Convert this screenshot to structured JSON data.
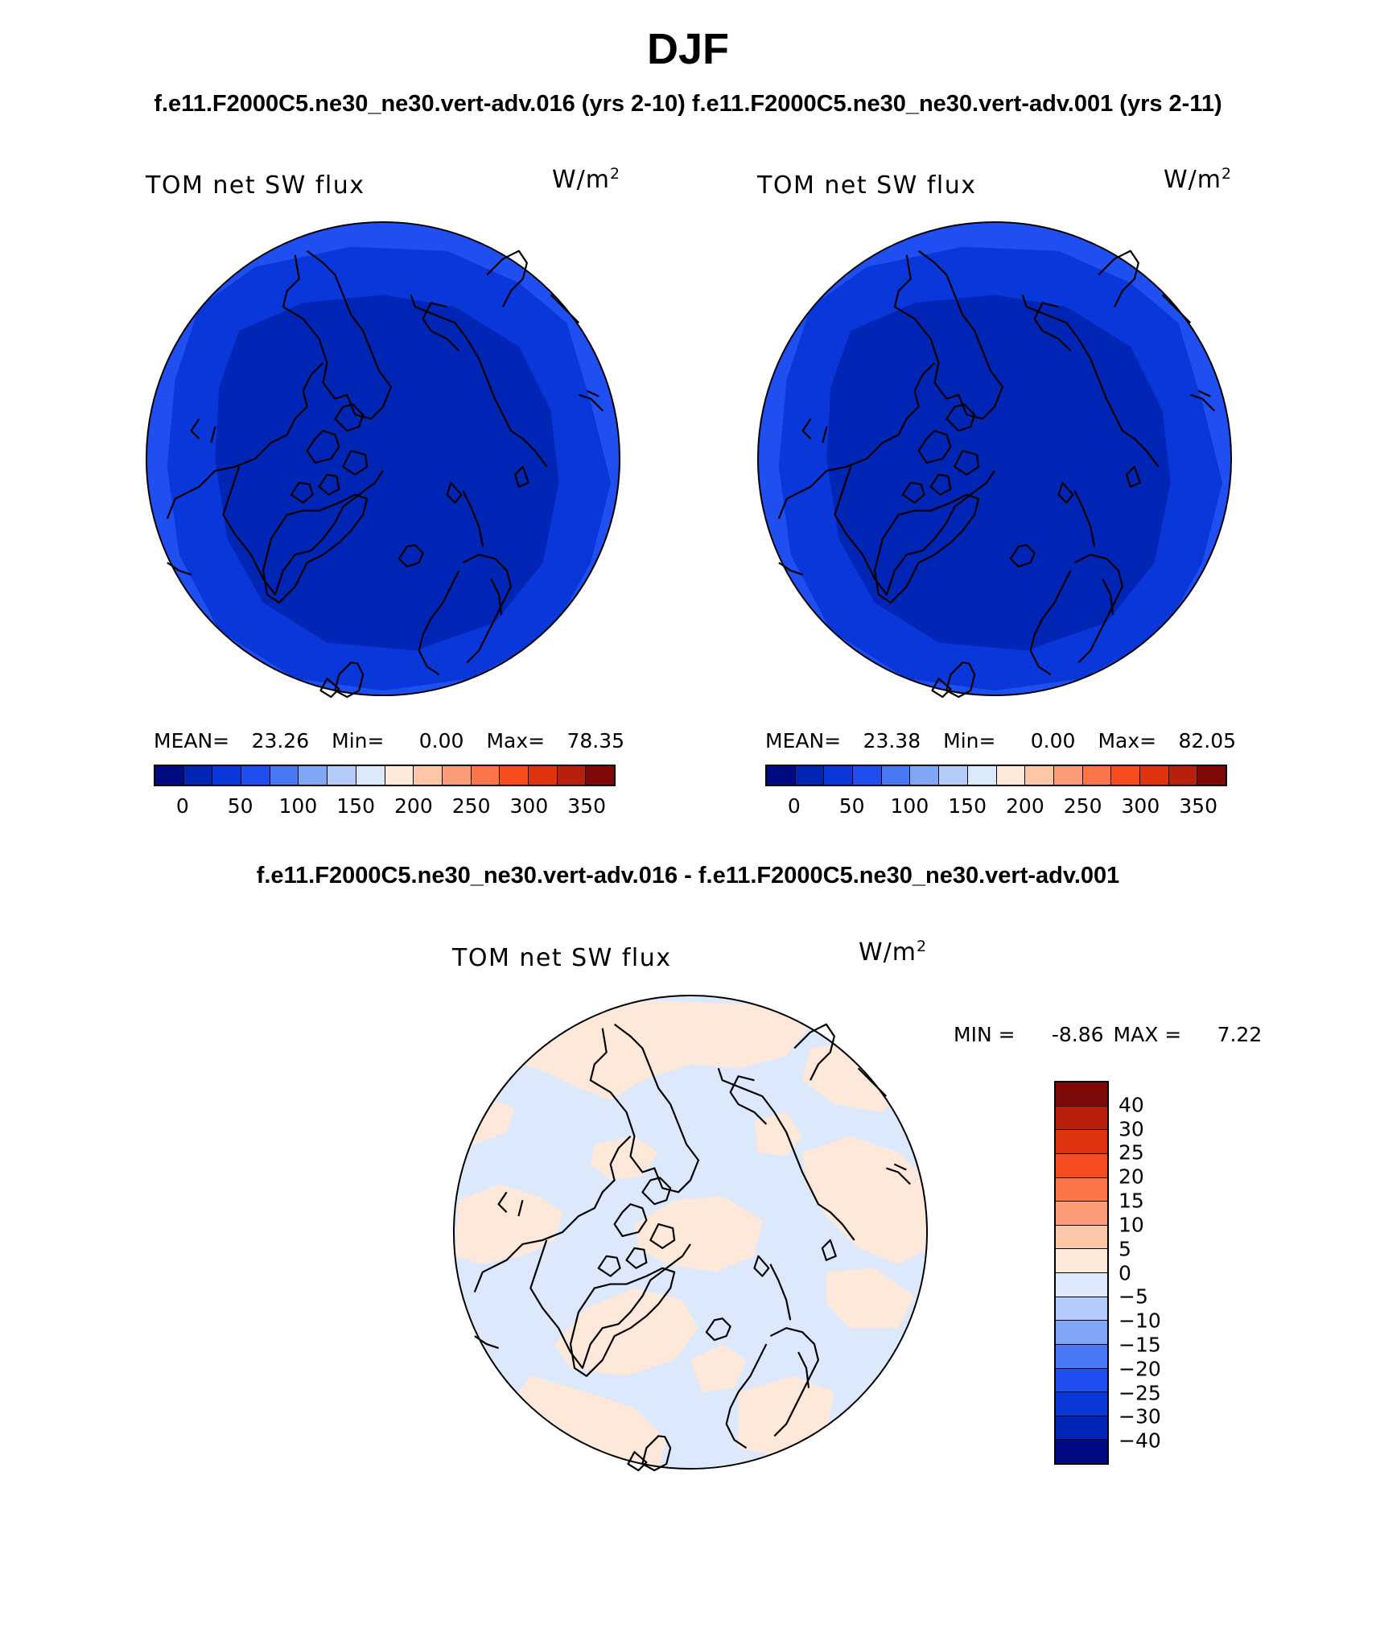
{
  "figure": {
    "title": "DJF",
    "subtitle_top": "f.e11.F2000C5.ne30_ne30.vert-adv.016 (yrs 2-10) f.e11.F2000C5.ne30_ne30.vert-adv.001 (yrs 2-11)",
    "subtitle_diff": "f.e11.F2000C5.ne30_ne30.vert-adv.016 - f.e11.F2000C5.ne30_ne30.vert-adv.001"
  },
  "panels": [
    {
      "variable": "TOM net SW flux",
      "units_base": "W/m",
      "units_exp": "2",
      "mean_label": "MEAN=",
      "mean": "23.26",
      "min_label": "Min=",
      "min": "0.00",
      "max_label": "Max=",
      "max": "78.35"
    },
    {
      "variable": "TOM net SW flux",
      "units_base": "W/m",
      "units_exp": "2",
      "mean_label": "MEAN=",
      "mean": "23.38",
      "min_label": "Min=",
      "min": "0.00",
      "max_label": "Max=",
      "max": "82.05"
    }
  ],
  "diff_panel": {
    "variable": "TOM net SW flux",
    "units_base": "W/m",
    "units_exp": "2",
    "min_label": "MIN =",
    "min": "-8.86",
    "max_label": "MAX =",
    "max": "7.22"
  },
  "colorbar_abs": {
    "colors": [
      "#000b82",
      "#0126b6",
      "#0a37d9",
      "#1f4ff0",
      "#4a77f4",
      "#80a6f6",
      "#b4cbf9",
      "#dce9fc",
      "#fde8d9",
      "#fdc6a8",
      "#fc9c76",
      "#fb744a",
      "#f84b20",
      "#e0320f",
      "#b8200c",
      "#7d0a08"
    ],
    "ticks": [
      "0",
      "50",
      "100",
      "150",
      "200",
      "250",
      "300",
      "350"
    ]
  },
  "colorbar_diff": {
    "colors": [
      "#7d0a08",
      "#b8200c",
      "#e0320f",
      "#f84b20",
      "#fb744a",
      "#fc9c76",
      "#fdc6a8",
      "#fde8d9",
      "#dce9fc",
      "#b4cbf9",
      "#80a6f6",
      "#4a77f4",
      "#1f4ff0",
      "#0a37d9",
      "#0126b6",
      "#000b82"
    ],
    "ticks": [
      "40",
      "30",
      "25",
      "20",
      "15",
      "10",
      "5",
      "0",
      "−5",
      "−10",
      "−15",
      "−20",
      "−25",
      "−30",
      "−40"
    ]
  },
  "map_colors": {
    "abs_outer": "#1f4ff0",
    "abs_mid": "#0a37d9",
    "abs_inner": "#0126b6",
    "diff_pos": "#fde8d9",
    "diff_neg": "#dce9fc"
  }
}
